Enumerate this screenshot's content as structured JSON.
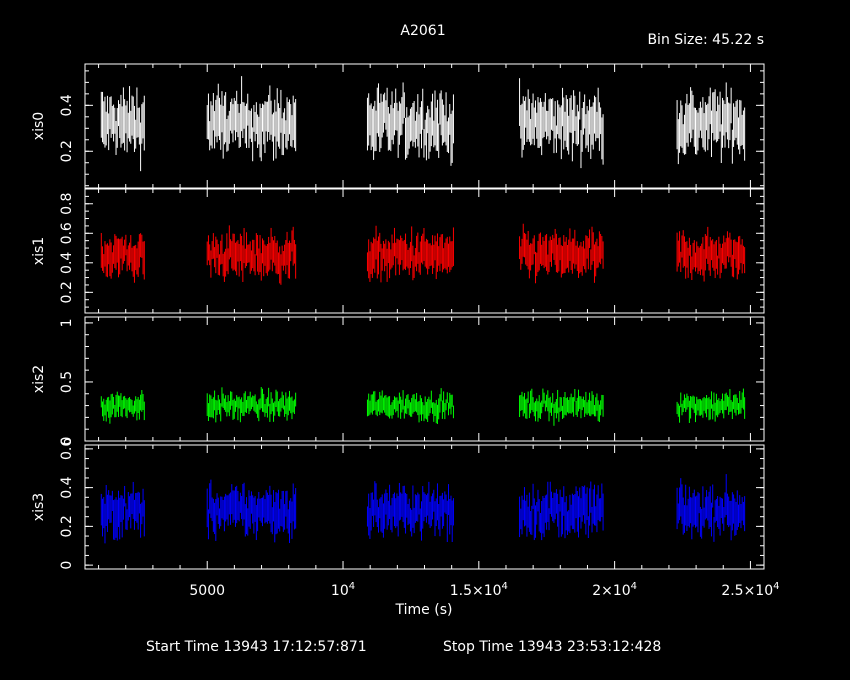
{
  "chart_data": {
    "type": "scatter",
    "title": "A2061",
    "bin_size_label": "Bin Size: 45.22 s",
    "xlabel": "Time (s)",
    "xlim": [
      500,
      25500
    ],
    "x_tick_labels": [
      {
        "value": 5000,
        "label": "5000"
      },
      {
        "value": 10000,
        "label": "10",
        "exp": "4",
        "prefix": ""
      },
      {
        "value": 15000,
        "label": "1.5×10",
        "exp": "4"
      },
      {
        "value": 20000,
        "label": "2×10",
        "exp": "4"
      },
      {
        "value": 25000,
        "label": "2.5×10",
        "exp": "4"
      }
    ],
    "start_time": "Start Time 13943 17:12:57:871",
    "stop_time": "Stop Time 13943 23:53:12:428",
    "observation_windows": [
      [
        1100,
        2700
      ],
      [
        5000,
        8300
      ],
      [
        10900,
        14100
      ],
      [
        16500,
        19600
      ],
      [
        22300,
        24800
      ]
    ],
    "panels": [
      {
        "name": "xis0",
        "color": "#ffffff",
        "ylim": [
          0.04,
          0.58
        ],
        "mean": 0.32,
        "spread": 0.11,
        "ticks": [
          {
            "v": 0.2,
            "t": "0.2"
          },
          {
            "v": 0.4,
            "t": "0.4"
          }
        ]
      },
      {
        "name": "xis1",
        "color": "#ff0000",
        "ylim": [
          0.06,
          0.9
        ],
        "mean": 0.45,
        "spread": 0.12,
        "ticks": [
          {
            "v": 0.2,
            "t": "0.2"
          },
          {
            "v": 0.4,
            "t": "0.4"
          },
          {
            "v": 0.6,
            "t": "0.6"
          },
          {
            "v": 0.8,
            "t": "0.8"
          }
        ]
      },
      {
        "name": "xis2",
        "color": "#00ff00",
        "ylim": [
          0.0,
          1.05
        ],
        "mean": 0.3,
        "spread": 0.09,
        "ticks": [
          {
            "v": 0.0,
            "t": "0"
          },
          {
            "v": 0.5,
            "t": "0.5"
          },
          {
            "v": 1.0,
            "t": "1"
          }
        ]
      },
      {
        "name": "xis3",
        "color": "#0000ff",
        "ylim": [
          -0.02,
          0.62
        ],
        "mean": 0.28,
        "spread": 0.1,
        "ticks": [
          {
            "v": 0.0,
            "t": "0"
          },
          {
            "v": 0.2,
            "t": "0.2"
          },
          {
            "v": 0.4,
            "t": "0.4"
          },
          {
            "v": 0.6,
            "t": "0.6"
          }
        ]
      }
    ]
  }
}
